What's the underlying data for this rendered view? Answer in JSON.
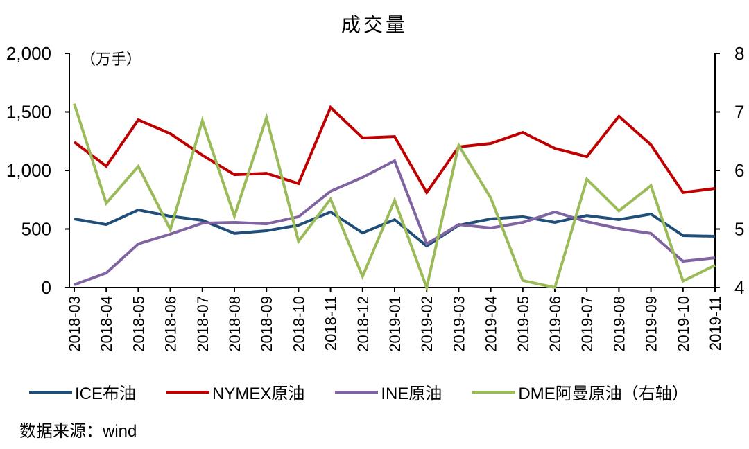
{
  "chart_data": {
    "type": "line",
    "title": "成交量",
    "ylabel_left_unit": "（万手）",
    "ylabel_right": "DME阿曼原油（右轴）",
    "xlabel": "",
    "ylim_left": [
      0,
      2000
    ],
    "ylim_right": [
      4,
      8
    ],
    "yticks_left": [
      "0",
      "500",
      "1,000",
      "1,500",
      "2,000"
    ],
    "yticks_left_values": [
      0,
      500,
      1000,
      1500,
      2000
    ],
    "yticks_right": [
      "4",
      "5",
      "6",
      "7",
      "8"
    ],
    "yticks_right_values": [
      4,
      5,
      6,
      7,
      8
    ],
    "grid": false,
    "legend_position": "bottom",
    "categories": [
      "2018-03",
      "2018-04",
      "2018-05",
      "2018-06",
      "2018-07",
      "2018-08",
      "2018-09",
      "2018-10",
      "2018-11",
      "2018-12",
      "2019-01",
      "2019-02",
      "2019-03",
      "2019-04",
      "2019-05",
      "2019-06",
      "2019-07",
      "2019-08",
      "2019-09",
      "2019-10",
      "2019-11"
    ],
    "series": [
      {
        "name": "ICE布油",
        "axis": "left",
        "color": "#1F4E79",
        "values": [
          586,
          538,
          663,
          609,
          574,
          462,
          485,
          532,
          645,
          467,
          580,
          355,
          532,
          586,
          604,
          556,
          615,
          580,
          627,
          444,
          438
        ]
      },
      {
        "name": "NYMEX原油",
        "axis": "left",
        "color": "#C00000",
        "values": [
          1243,
          1036,
          1432,
          1314,
          1130,
          964,
          976,
          888,
          1538,
          1278,
          1290,
          811,
          1201,
          1231,
          1325,
          1189,
          1118,
          1462,
          1219,
          811,
          846
        ]
      },
      {
        "name": "INE原油",
        "axis": "left",
        "color": "#8064A2",
        "values": [
          24,
          124,
          373,
          456,
          550,
          556,
          544,
          604,
          822,
          941,
          1083,
          373,
          538,
          509,
          556,
          645,
          562,
          503,
          462,
          225,
          254
        ]
      },
      {
        "name": "DME阿曼原油（右轴）",
        "axis": "right",
        "color": "#9BBB59",
        "values": [
          7.14,
          5.44,
          6.07,
          4.99,
          6.85,
          5.22,
          6.9,
          4.79,
          5.51,
          4.19,
          5.49,
          4.0,
          6.43,
          5.53,
          4.12,
          4.0,
          5.85,
          5.31,
          5.74,
          4.11,
          4.38
        ]
      }
    ]
  },
  "legend": [
    {
      "label": "ICE布油",
      "color": "#1F4E79"
    },
    {
      "label": "NYMEX原油",
      "color": "#C00000"
    },
    {
      "label": "INE原油",
      "color": "#8064A2"
    },
    {
      "label": "DME阿曼原油（右轴）",
      "color": "#9BBB59"
    }
  ],
  "source": "数据来源：wind"
}
